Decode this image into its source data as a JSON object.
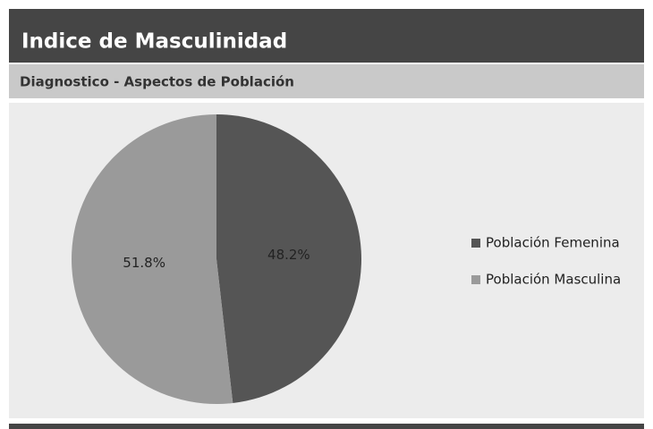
{
  "chart_data": {
    "type": "pie",
    "title": "Indice de Masculinidad",
    "subtitle": "Diagnostico - Aspectos de Población",
    "categories": [
      "Población Femenina",
      "Población Masculina"
    ],
    "values": [
      48.2,
      51.8
    ],
    "value_labels": [
      "48.2%",
      "51.8%"
    ],
    "colors": [
      "#555555",
      "#9a9a9a"
    ],
    "legend": "right"
  }
}
